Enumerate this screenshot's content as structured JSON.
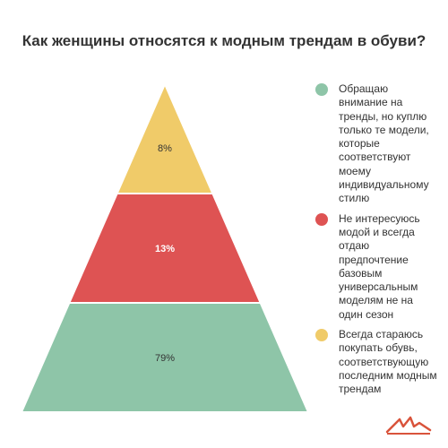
{
  "chart_data": {
    "type": "pyramid",
    "title": "Как женщины относятся к модным трендам в обуви?",
    "levels": [
      {
        "name": "Всегда стараюсь покупать обувь, соответствующую последним модным трендам",
        "value": 8,
        "label": "8%",
        "color": "#f0cb69"
      },
      {
        "name": "Не интересуюсь модой и всегда отдаю предпочтение базовым универсальным моделям не на один сезон",
        "value": 13,
        "label": "13%",
        "color": "#de5353"
      },
      {
        "name": "Обращаю внимание на тренды, но куплю только те модели, которые соответствуют моему индивидуальному стилю",
        "value": 79,
        "label": "79%",
        "color": "#8ec5a8"
      }
    ],
    "legend": [
      {
        "label": "Обращаю внимание на тренды, но куплю только те модели, которые соответствуют моему индивидуальному стилю",
        "color": "#8ec5a8"
      },
      {
        "label": "Не интересуюсь модой и всегда отдаю предпочтение базовым универсальным моделям не на один сезон",
        "color": "#de5353"
      },
      {
        "label": "Всегда стараюсь покупать обувь, соответствующую последним модным трендам",
        "color": "#f0cb69"
      }
    ],
    "legend_position": "right"
  },
  "logo": {
    "color": "#d9533b"
  }
}
